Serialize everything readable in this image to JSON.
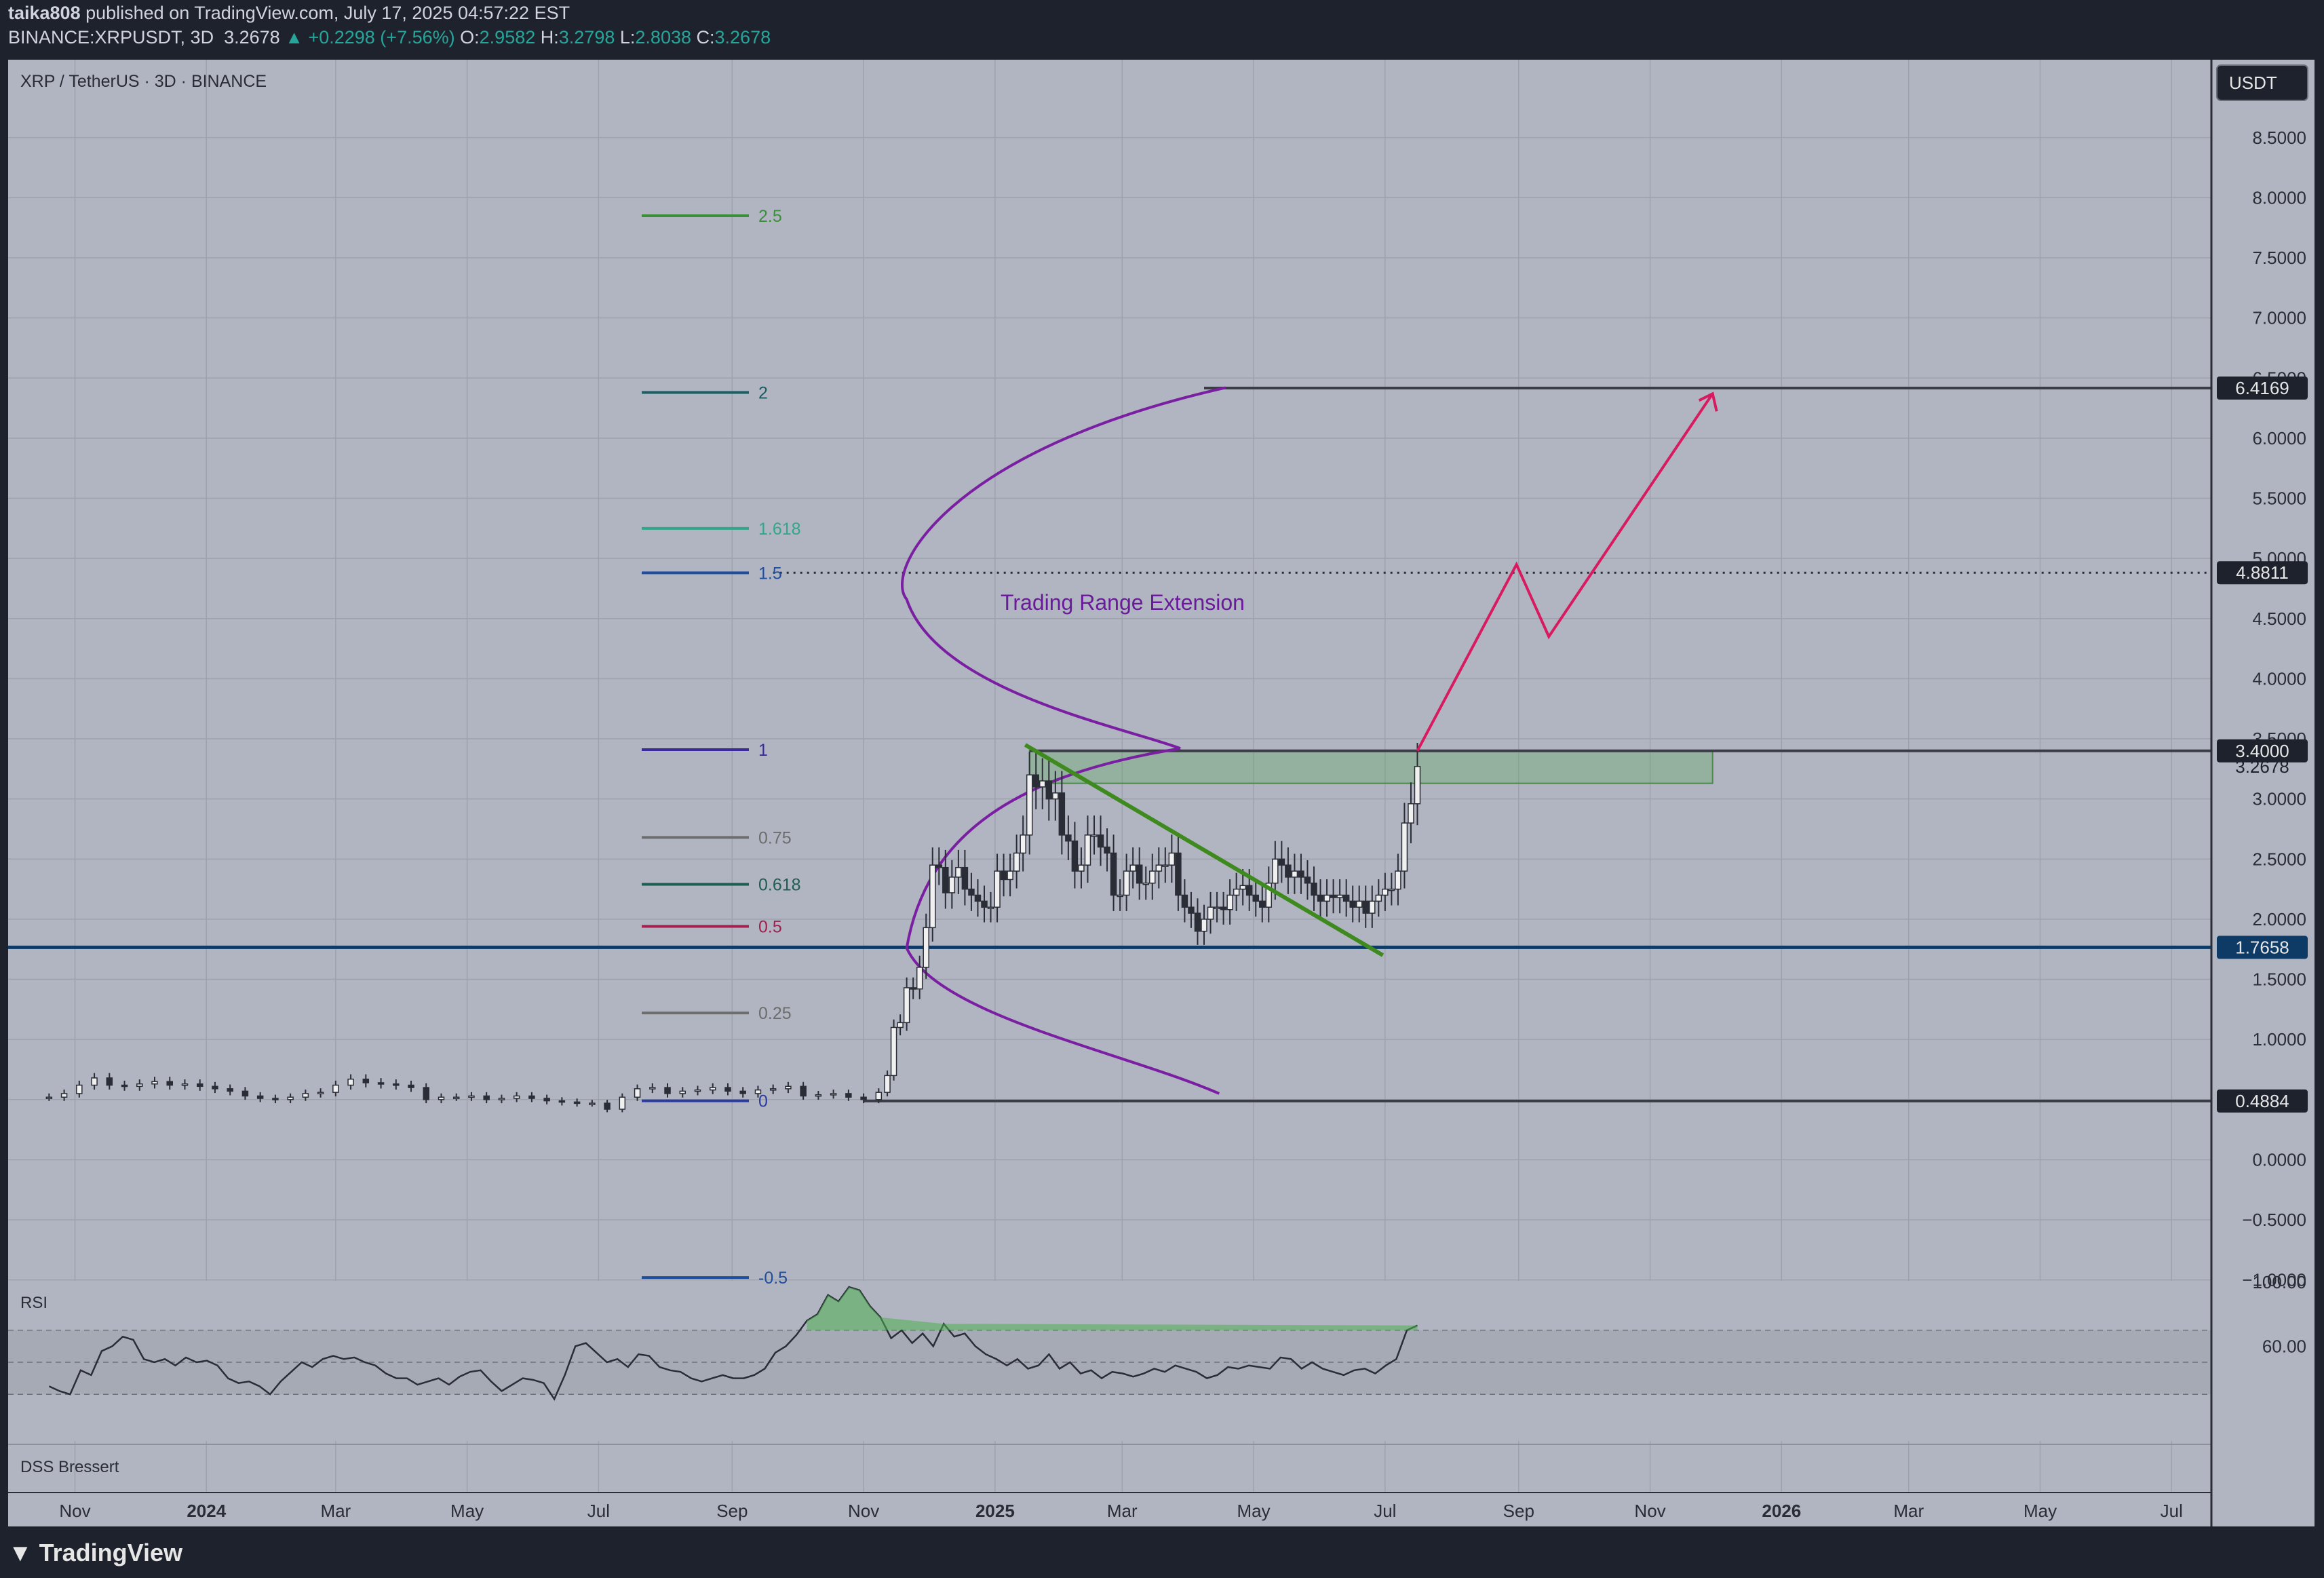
{
  "header": {
    "author": "taika808",
    "published": "published on TradingView.com, July 17, 2025 04:57:22 EST",
    "symbol": "BINANCE:XRPUSDT, 3D",
    "last": "3.2678",
    "change": "+0.2298 (+7.56%)",
    "o_label": "O:",
    "o": "2.9582",
    "h_label": "H:",
    "h": "3.2798",
    "l_label": "L:",
    "l": "2.8038",
    "c_label": "C:",
    "c": "3.2678"
  },
  "chart_title": "XRP / TetherUS · 3D · BINANCE",
  "currency_button": "USDT",
  "footer_brand": "TradingView",
  "colors": {
    "background": "#b1b5c1",
    "frame": "#1e222d",
    "candle": "#2a2d36",
    "fib_curve": "#7b1fa2",
    "projection": "#d81b60",
    "trendline": "#3f8a1e",
    "support": "#0d3b66"
  },
  "chart_data": {
    "type": "candlestick",
    "symbol": "XRP / TetherUS",
    "interval": "3D",
    "exchange": "BINANCE",
    "x_ticks": [
      "Nov",
      "2024",
      "Mar",
      "May",
      "Jul",
      "Sep",
      "Nov",
      "2025",
      "Mar",
      "May",
      "Jul",
      "Sep",
      "Nov",
      "2026",
      "Mar",
      "May",
      "Jul"
    ],
    "y_ticks": [
      "8.5000",
      "8.0000",
      "7.5000",
      "7.0000",
      "6.5000",
      "6.0000",
      "5.5000",
      "5.0000",
      "4.5000",
      "4.0000",
      "3.5000",
      "3.0000",
      "2.5000",
      "2.0000",
      "1.5000",
      "1.0000",
      "0.5000",
      "0.0000",
      "−0.5000",
      "−1.0000"
    ],
    "y_range": [
      -1.25,
      8.95
    ],
    "x_range_months": [
      "2023-10",
      "2026-07"
    ],
    "price_labels": [
      {
        "value": 6.4169,
        "text": "6.4169",
        "style": "boxed"
      },
      {
        "value": 4.8811,
        "text": "4.8811",
        "style": "boxed"
      },
      {
        "value": 3.4,
        "text": "3.4000",
        "style": "boxed"
      },
      {
        "value": 3.2678,
        "text": "3.2678",
        "style": "plain"
      },
      {
        "value": 1.7658,
        "text": "1.7658",
        "style": "support"
      },
      {
        "value": 0.4884,
        "text": "0.4884",
        "style": "boxed"
      }
    ],
    "fib_levels": [
      {
        "label": "2.5",
        "value": 7.85,
        "color": "#3c8f3a"
      },
      {
        "label": "2",
        "value": 6.38,
        "color": "#1c5c63"
      },
      {
        "label": "1.618",
        "value": 5.25,
        "color": "#2fa889"
      },
      {
        "label": "1.5",
        "value": 4.88,
        "color": "#1f4e9e"
      },
      {
        "label": "1",
        "value": 3.41,
        "color": "#3a2a9c"
      },
      {
        "label": "0.75",
        "value": 2.68,
        "color": "#6d6d6d"
      },
      {
        "label": "0.618",
        "value": 2.29,
        "color": "#1f5c52"
      },
      {
        "label": "0.5",
        "value": 1.94,
        "color": "#a0214e"
      },
      {
        "label": "0.25",
        "value": 1.22,
        "color": "#6d6d6d"
      },
      {
        "label": "0",
        "value": 0.49,
        "color": "#2a3b9c"
      },
      {
        "label": "-0.5",
        "value": -0.98,
        "color": "#1f4e9e"
      }
    ],
    "annotation": "Trading Range Extension",
    "candles": [
      [
        "2023-10-20",
        0.52
      ],
      [
        "2023-10-27",
        0.55
      ],
      [
        "2023-11-03",
        0.62
      ],
      [
        "2023-11-10",
        0.68
      ],
      [
        "2023-11-17",
        0.62
      ],
      [
        "2023-11-24",
        0.61
      ],
      [
        "2023-12-01",
        0.63
      ],
      [
        "2023-12-08",
        0.65
      ],
      [
        "2023-12-15",
        0.62
      ],
      [
        "2023-12-22",
        0.63
      ],
      [
        "2023-12-29",
        0.61
      ],
      [
        "2024-01-05",
        0.59
      ],
      [
        "2024-01-12",
        0.57
      ],
      [
        "2024-01-19",
        0.53
      ],
      [
        "2024-01-26",
        0.51
      ],
      [
        "2024-02-02",
        0.5
      ],
      [
        "2024-02-09",
        0.52
      ],
      [
        "2024-02-16",
        0.55
      ],
      [
        "2024-02-23",
        0.56
      ],
      [
        "2024-03-01",
        0.62
      ],
      [
        "2024-03-08",
        0.67
      ],
      [
        "2024-03-15",
        0.64
      ],
      [
        "2024-03-22",
        0.63
      ],
      [
        "2024-03-29",
        0.62
      ],
      [
        "2024-04-05",
        0.6
      ],
      [
        "2024-04-12",
        0.5
      ],
      [
        "2024-04-19",
        0.52
      ],
      [
        "2024-04-26",
        0.52
      ],
      [
        "2024-05-03",
        0.53
      ],
      [
        "2024-05-10",
        0.5
      ],
      [
        "2024-05-17",
        0.51
      ],
      [
        "2024-05-24",
        0.53
      ],
      [
        "2024-05-31",
        0.51
      ],
      [
        "2024-06-07",
        0.49
      ],
      [
        "2024-06-14",
        0.48
      ],
      [
        "2024-06-21",
        0.47
      ],
      [
        "2024-06-28",
        0.47
      ],
      [
        "2024-07-05",
        0.42
      ],
      [
        "2024-07-12",
        0.52
      ],
      [
        "2024-07-19",
        0.59
      ],
      [
        "2024-07-26",
        0.6
      ],
      [
        "2024-08-02",
        0.55
      ],
      [
        "2024-08-09",
        0.57
      ],
      [
        "2024-08-16",
        0.58
      ],
      [
        "2024-08-23",
        0.6
      ],
      [
        "2024-08-30",
        0.57
      ],
      [
        "2024-09-06",
        0.55
      ],
      [
        "2024-09-13",
        0.58
      ],
      [
        "2024-09-20",
        0.59
      ],
      [
        "2024-09-27",
        0.61
      ],
      [
        "2024-10-04",
        0.53
      ],
      [
        "2024-10-11",
        0.54
      ],
      [
        "2024-10-18",
        0.55
      ],
      [
        "2024-10-25",
        0.52
      ],
      [
        "2024-11-01",
        0.5
      ],
      [
        "2024-11-08",
        0.56
      ],
      [
        "2024-11-12",
        0.7
      ],
      [
        "2024-11-15",
        1.1
      ],
      [
        "2024-11-18",
        1.14
      ],
      [
        "2024-11-21",
        1.43
      ],
      [
        "2024-11-24",
        1.42
      ],
      [
        "2024-11-27",
        1.6
      ],
      [
        "2024-11-30",
        1.93
      ],
      [
        "2024-12-03",
        2.45
      ],
      [
        "2024-12-06",
        2.43
      ],
      [
        "2024-12-09",
        2.22
      ],
      [
        "2024-12-12",
        2.35
      ],
      [
        "2024-12-15",
        2.43
      ],
      [
        "2024-12-18",
        2.25
      ],
      [
        "2024-12-21",
        2.2
      ],
      [
        "2024-12-24",
        2.15
      ],
      [
        "2024-12-27",
        2.1
      ],
      [
        "2024-12-30",
        2.1
      ],
      [
        "2025-01-02",
        2.4
      ],
      [
        "2025-01-05",
        2.33
      ],
      [
        "2025-01-08",
        2.4
      ],
      [
        "2025-01-11",
        2.55
      ],
      [
        "2025-01-14",
        2.7
      ],
      [
        "2025-01-17",
        3.2
      ],
      [
        "2025-01-20",
        3.1
      ],
      [
        "2025-01-23",
        3.15
      ],
      [
        "2025-01-26",
        3.0
      ],
      [
        "2025-01-29",
        3.05
      ],
      [
        "2025-02-01",
        2.7
      ],
      [
        "2025-02-04",
        2.65
      ],
      [
        "2025-02-07",
        2.4
      ],
      [
        "2025-02-10",
        2.45
      ],
      [
        "2025-02-13",
        2.7
      ],
      [
        "2025-02-16",
        2.7
      ],
      [
        "2025-02-19",
        2.6
      ],
      [
        "2025-02-22",
        2.55
      ],
      [
        "2025-02-25",
        2.2
      ],
      [
        "2025-02-28",
        2.2
      ],
      [
        "2025-03-03",
        2.4
      ],
      [
        "2025-03-06",
        2.45
      ],
      [
        "2025-03-09",
        2.3
      ],
      [
        "2025-03-12",
        2.3
      ],
      [
        "2025-03-15",
        2.4
      ],
      [
        "2025-03-18",
        2.45
      ],
      [
        "2025-03-21",
        2.45
      ],
      [
        "2025-03-24",
        2.55
      ],
      [
        "2025-03-27",
        2.2
      ],
      [
        "2025-03-30",
        2.1
      ],
      [
        "2025-04-02",
        2.05
      ],
      [
        "2025-04-05",
        1.9
      ],
      [
        "2025-04-08",
        2.0
      ],
      [
        "2025-04-11",
        2.1
      ],
      [
        "2025-04-14",
        2.1
      ],
      [
        "2025-04-17",
        2.08
      ],
      [
        "2025-04-20",
        2.2
      ],
      [
        "2025-04-23",
        2.25
      ],
      [
        "2025-04-26",
        2.28
      ],
      [
        "2025-04-29",
        2.2
      ],
      [
        "2025-05-02",
        2.15
      ],
      [
        "2025-05-05",
        2.1
      ],
      [
        "2025-05-08",
        2.3
      ],
      [
        "2025-05-11",
        2.5
      ],
      [
        "2025-05-14",
        2.45
      ],
      [
        "2025-05-17",
        2.35
      ],
      [
        "2025-05-20",
        2.4
      ],
      [
        "2025-05-23",
        2.35
      ],
      [
        "2025-05-26",
        2.3
      ],
      [
        "2025-05-29",
        2.2
      ],
      [
        "2025-06-01",
        2.15
      ],
      [
        "2025-06-04",
        2.2
      ],
      [
        "2025-06-07",
        2.18
      ],
      [
        "2025-06-10",
        2.2
      ],
      [
        "2025-06-13",
        2.15
      ],
      [
        "2025-06-16",
        2.1
      ],
      [
        "2025-06-19",
        2.15
      ],
      [
        "2025-06-22",
        2.05
      ],
      [
        "2025-06-25",
        2.15
      ],
      [
        "2025-06-28",
        2.2
      ],
      [
        "2025-07-01",
        2.25
      ],
      [
        "2025-07-04",
        2.25
      ],
      [
        "2025-07-07",
        2.4
      ],
      [
        "2025-07-10",
        2.8
      ],
      [
        "2025-07-13",
        2.96
      ],
      [
        "2025-07-16",
        3.27
      ]
    ],
    "projection_path": [
      [
        "2025-07-16",
        3.4
      ],
      [
        "2025-08-31",
        4.95
      ],
      [
        "2025-09-15",
        4.35
      ],
      [
        "2025-11-30",
        6.37
      ]
    ],
    "trendline": [
      [
        "2025-01-15",
        3.45
      ],
      [
        "2025-06-30",
        1.7
      ]
    ],
    "horizontal_lines": [
      6.4169,
      4.8811,
      3.4,
      1.7658,
      0.4884
    ],
    "demand_zone": {
      "from": "2025-01-17",
      "to": "2025-11-30",
      "low": 3.13,
      "high": 3.4
    },
    "rsi": {
      "label": "RSI",
      "y_ticks": [
        "100.00",
        "60.00"
      ],
      "band": [
        30,
        70
      ],
      "values": [
        35,
        32,
        30,
        45,
        42,
        57,
        60,
        66,
        64,
        52,
        50,
        52,
        48,
        53,
        50,
        51,
        48,
        40,
        37,
        38,
        35,
        30,
        38,
        44,
        50,
        47,
        52,
        54,
        52,
        53,
        50,
        48,
        43,
        40,
        40,
        36,
        38,
        40,
        36,
        41,
        44,
        45,
        38,
        32,
        36,
        40,
        39,
        37,
        27,
        42,
        60,
        62,
        56,
        50,
        52,
        47,
        55,
        54,
        47,
        45,
        44,
        40,
        38,
        40,
        42,
        40,
        40,
        42,
        46,
        56,
        60,
        67,
        76,
        80,
        92,
        88,
        97,
        95,
        85,
        78,
        65,
        70,
        62,
        68,
        60,
        74,
        66,
        68,
        60,
        55,
        52,
        48,
        52,
        46,
        48,
        55,
        46,
        50,
        43,
        45,
        40,
        44,
        43,
        41,
        43,
        46,
        44,
        48,
        46,
        44,
        40,
        42,
        47,
        46,
        48,
        47,
        46,
        53,
        52,
        46,
        50,
        46,
        44,
        42,
        45,
        46,
        43,
        48,
        52,
        70,
        73
      ]
    },
    "lower_panel": "DSS Bressert"
  }
}
